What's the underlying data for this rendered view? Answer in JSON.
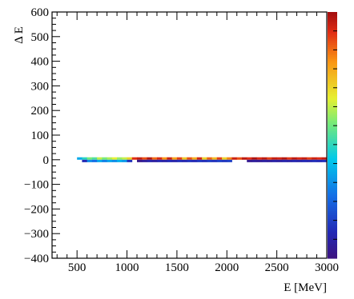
{
  "chart_data": {
    "type": "heatmap",
    "xlabel": "E [MeV]",
    "ylabel": "Δ E",
    "xlim": [
      250,
      3000
    ],
    "ylim": [
      -400,
      600
    ],
    "x_ticks": [
      500,
      1000,
      1500,
      2000,
      2500,
      3000
    ],
    "y_ticks": [
      -400,
      -300,
      -200,
      -100,
      0,
      100,
      200,
      300,
      400,
      500,
      600
    ],
    "grid": false,
    "colorbar": {
      "position": "right",
      "colormap": "rainbow",
      "labels_shown": false
    },
    "bin_width_x": 50,
    "bin_height_y": 10,
    "rows": [
      {
        "y_from": 0,
        "y_to": 10,
        "cells": [
          {
            "x": 525,
            "level": 0.35
          },
          {
            "x": 575,
            "level": 0.45
          },
          {
            "x": 625,
            "level": 0.55
          },
          {
            "x": 675,
            "level": 0.5
          },
          {
            "x": 725,
            "level": 0.62
          },
          {
            "x": 775,
            "level": 0.55
          },
          {
            "x": 825,
            "level": 0.6
          },
          {
            "x": 875,
            "level": 0.65
          },
          {
            "x": 925,
            "level": 0.58
          },
          {
            "x": 975,
            "level": 0.62
          },
          {
            "x": 1025,
            "level": 0.7
          },
          {
            "x": 1075,
            "level": 0.92
          },
          {
            "x": 1125,
            "level": 0.96
          },
          {
            "x": 1175,
            "level": 0.88
          },
          {
            "x": 1225,
            "level": 0.98
          },
          {
            "x": 1275,
            "level": 0.85
          },
          {
            "x": 1325,
            "level": 0.93
          },
          {
            "x": 1375,
            "level": 0.8
          },
          {
            "x": 1425,
            "level": 0.95
          },
          {
            "x": 1475,
            "level": 0.78
          },
          {
            "x": 1525,
            "level": 0.9
          },
          {
            "x": 1575,
            "level": 0.72
          },
          {
            "x": 1625,
            "level": 0.88
          },
          {
            "x": 1675,
            "level": 0.76
          },
          {
            "x": 1725,
            "level": 0.94
          },
          {
            "x": 1775,
            "level": 0.7
          },
          {
            "x": 1825,
            "level": 0.86
          },
          {
            "x": 1875,
            "level": 0.74
          },
          {
            "x": 1925,
            "level": 0.9
          },
          {
            "x": 1975,
            "level": 0.7
          },
          {
            "x": 2025,
            "level": 0.82
          },
          {
            "x": 2075,
            "level": 0.95
          },
          {
            "x": 2125,
            "level": 0.88
          },
          {
            "x": 2175,
            "level": 0.97
          },
          {
            "x": 2225,
            "level": 0.92
          },
          {
            "x": 2275,
            "level": 0.99
          },
          {
            "x": 2325,
            "level": 0.93
          },
          {
            "x": 2375,
            "level": 0.97
          },
          {
            "x": 2425,
            "level": 0.9
          },
          {
            "x": 2475,
            "level": 0.96
          },
          {
            "x": 2525,
            "level": 0.94
          },
          {
            "x": 2575,
            "level": 0.98
          },
          {
            "x": 2625,
            "level": 0.91
          },
          {
            "x": 2675,
            "level": 0.97
          },
          {
            "x": 2725,
            "level": 0.93
          },
          {
            "x": 2775,
            "level": 0.96
          },
          {
            "x": 2825,
            "level": 0.9
          },
          {
            "x": 2875,
            "level": 0.95
          },
          {
            "x": 2925,
            "level": 0.92
          },
          {
            "x": 2975,
            "level": 0.96
          }
        ]
      },
      {
        "y_from": -10,
        "y_to": 0,
        "cells": [
          {
            "x": 575,
            "level": 0.1
          },
          {
            "x": 625,
            "level": 0.3
          },
          {
            "x": 675,
            "level": 0.25
          },
          {
            "x": 725,
            "level": 0.35
          },
          {
            "x": 775,
            "level": 0.28
          },
          {
            "x": 825,
            "level": 0.34
          },
          {
            "x": 875,
            "level": 0.3
          },
          {
            "x": 925,
            "level": 0.36
          },
          {
            "x": 975,
            "level": 0.32
          },
          {
            "x": 1025,
            "level": 0.12
          },
          {
            "x": 1125,
            "level": 0.02
          },
          {
            "x": 1175,
            "level": 0.05
          },
          {
            "x": 1225,
            "level": 0.08
          },
          {
            "x": 1275,
            "level": 0.06
          },
          {
            "x": 1325,
            "level": 0.09
          },
          {
            "x": 1375,
            "level": 0.07
          },
          {
            "x": 1425,
            "level": 0.1
          },
          {
            "x": 1475,
            "level": 0.08
          },
          {
            "x": 1525,
            "level": 0.11
          },
          {
            "x": 1575,
            "level": 0.09
          },
          {
            "x": 1625,
            "level": 0.12
          },
          {
            "x": 1675,
            "level": 0.1
          },
          {
            "x": 1725,
            "level": 0.13
          },
          {
            "x": 1775,
            "level": 0.11
          },
          {
            "x": 1825,
            "level": 0.14
          },
          {
            "x": 1875,
            "level": 0.12
          },
          {
            "x": 1925,
            "level": 0.15
          },
          {
            "x": 1975,
            "level": 0.13
          },
          {
            "x": 2025,
            "level": 0.15
          },
          {
            "x": 2225,
            "level": 0.03
          },
          {
            "x": 2275,
            "level": 0.05
          },
          {
            "x": 2325,
            "level": 0.04
          },
          {
            "x": 2375,
            "level": 0.06
          },
          {
            "x": 2425,
            "level": 0.05
          },
          {
            "x": 2475,
            "level": 0.07
          },
          {
            "x": 2525,
            "level": 0.06
          },
          {
            "x": 2575,
            "level": 0.08
          },
          {
            "x": 2625,
            "level": 0.07
          },
          {
            "x": 2675,
            "level": 0.09
          },
          {
            "x": 2725,
            "level": 0.08
          },
          {
            "x": 2775,
            "level": 0.1
          },
          {
            "x": 2825,
            "level": 0.09
          },
          {
            "x": 2875,
            "level": 0.11
          },
          {
            "x": 2925,
            "level": 0.1
          },
          {
            "x": 2975,
            "level": 0.12
          }
        ]
      }
    ]
  }
}
